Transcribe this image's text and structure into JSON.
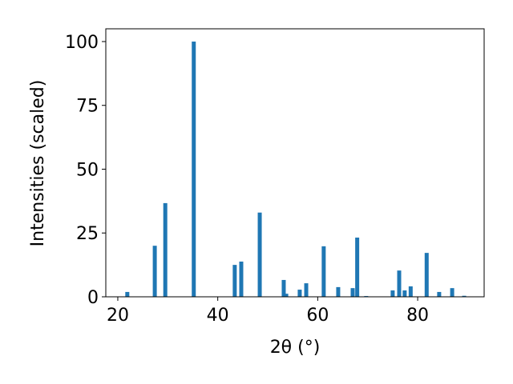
{
  "chart_data": {
    "type": "bar",
    "xlabel": "2θ (°)",
    "ylabel": "Intensities (scaled)",
    "x": [
      21.9,
      27.4,
      29.5,
      35.2,
      43.4,
      44.7,
      48.4,
      53.2,
      53.7,
      56.4,
      57.7,
      61.2,
      64.1,
      67.0,
      67.9,
      69.7,
      75.0,
      76.3,
      77.4,
      78.6,
      81.8,
      84.3,
      86.9,
      89.3
    ],
    "values": [
      1.9,
      20,
      36.7,
      100,
      12.5,
      13.8,
      33,
      6.6,
      1.2,
      2.8,
      5.3,
      19.8,
      3.8,
      3.4,
      23.2,
      0.3,
      2.5,
      10.3,
      2.5,
      4.1,
      17.2,
      1.9,
      3.4,
      0.4
    ],
    "color": "#1f77b4",
    "xlim": [
      17.6,
      93.3
    ],
    "xticks": [
      20,
      40,
      60,
      80
    ],
    "ylim": [
      0,
      105
    ],
    "yticks": [
      0,
      25,
      50,
      75,
      100
    ]
  }
}
